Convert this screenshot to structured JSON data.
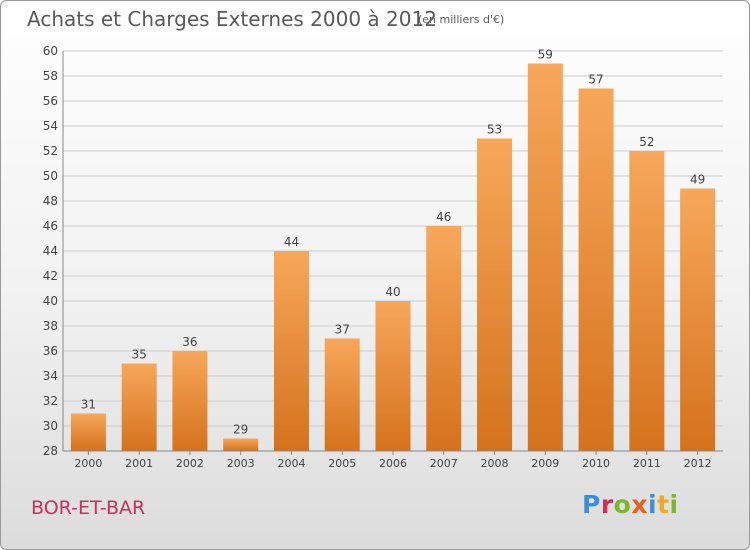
{
  "header": {
    "title": "Achats et Charges Externes 2000 à 2012",
    "subtitle": "(en milliers d'€)"
  },
  "footer": {
    "commune": "BOR-ET-BAR",
    "logo_text": "Proxiti"
  },
  "colors": {
    "bar_light": "#f7a75a",
    "bar_dark": "#d5721d",
    "grid": "#cccccc",
    "text": "#444444",
    "commune": "#c9305b"
  },
  "chart_data": {
    "type": "bar",
    "categories": [
      "2000",
      "2001",
      "2002",
      "2003",
      "2004",
      "2005",
      "2006",
      "2007",
      "2008",
      "2009",
      "2010",
      "2011",
      "2012"
    ],
    "values": [
      31,
      35,
      36,
      29,
      44,
      37,
      40,
      46,
      53,
      59,
      57,
      52,
      49
    ],
    "title": "Achats et Charges Externes 2000 à 2012",
    "subtitle": "(en milliers d'€)",
    "xlabel": "",
    "ylabel": "",
    "ylim": [
      28,
      60
    ],
    "yticks": [
      28,
      30,
      32,
      34,
      36,
      38,
      40,
      42,
      44,
      46,
      48,
      50,
      52,
      54,
      56,
      58,
      60
    ],
    "grid": true,
    "data_labels": true
  }
}
